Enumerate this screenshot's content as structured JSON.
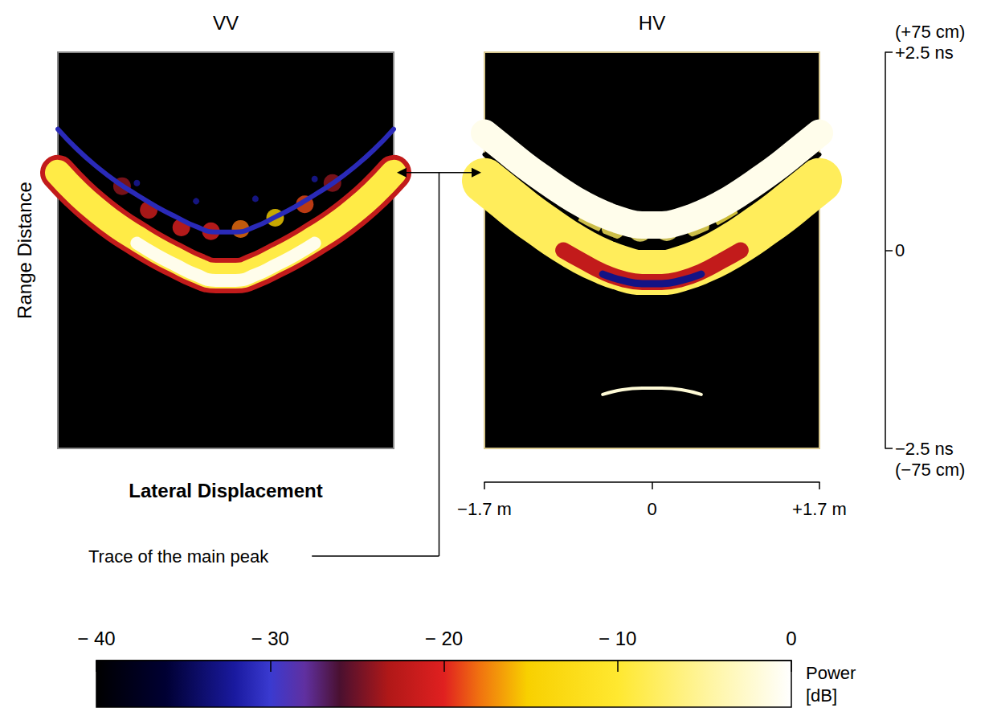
{
  "chart_data": [
    {
      "type": "line",
      "title": "VV",
      "tick_labels": false,
      "xlim": [
        -1.7,
        1.7
      ],
      "ylim": [
        -2.5,
        2.5
      ],
      "x": [
        -1.7,
        -1.5,
        -1.3,
        -1.1,
        -0.9,
        -0.7,
        -0.5,
        -0.3,
        -0.1,
        0.1,
        0.3,
        0.5,
        0.7,
        0.9,
        1.1,
        1.3,
        1.5,
        1.7
      ],
      "series": [
        {
          "type": "line",
          "power": -31,
          "values": [
            1.53,
            1.27,
            1.05,
            0.86,
            0.7,
            0.55,
            0.42,
            0.3,
            0.23,
            0.23,
            0.3,
            0.42,
            0.55,
            0.7,
            0.86,
            1.05,
            1.27,
            1.53
          ]
        },
        {
          "type": "line",
          "power": -22,
          "values": [
            0.98,
            0.72,
            0.5,
            0.31,
            0.15,
            0.0,
            -0.13,
            -0.25,
            -0.32,
            -0.32,
            -0.25,
            -0.13,
            0.0,
            0.15,
            0.31,
            0.5,
            0.72,
            0.98
          ]
        },
        {
          "type": "line",
          "power": -9,
          "values": [
            0.98,
            0.72,
            0.5,
            0.31,
            0.15,
            0.0,
            -0.13,
            -0.25,
            -0.32,
            -0.32,
            -0.25,
            -0.13,
            0.0,
            0.15,
            0.31,
            0.5,
            0.72,
            0.98
          ]
        },
        {
          "type": "line",
          "power": -1,
          "values": [
            null,
            null,
            null,
            null,
            0.09,
            -0.06,
            -0.19,
            -0.31,
            -0.38,
            -0.38,
            -0.31,
            -0.19,
            -0.06,
            0.09,
            null,
            null,
            null,
            null
          ]
        },
        {
          "type": "scatter",
          "x": [
            -0.9,
            -0.3,
            0.3,
            0.9
          ],
          "values": [
            0.85,
            0.62,
            0.65,
            0.9
          ],
          "power": [
            -32,
            -32,
            -32,
            -32
          ]
        },
        {
          "type": "scatter",
          "x": [
            -1.05,
            -0.78,
            -0.45,
            -0.15,
            0.15,
            0.5,
            0.8,
            1.08
          ],
          "values": [
            0.81,
            0.51,
            0.29,
            0.24,
            0.27,
            0.41,
            0.58,
            0.85
          ],
          "power": [
            -24,
            -21,
            -20,
            -20,
            -18,
            -15,
            -19,
            -24
          ]
        }
      ]
    },
    {
      "type": "line",
      "title": "HV",
      "xlim": [
        -1.7,
        1.7
      ],
      "ylim": [
        -2.5,
        2.5
      ],
      "xticks": [
        {
          "value": -1.7,
          "label": "−1.7 m"
        },
        0,
        {
          "value": 1.7,
          "label": "+1.7 m"
        }
      ],
      "yticks": [
        {
          "value": -2.5,
          "label": "−2.5 ns"
        },
        0,
        {
          "value": 2.5,
          "label": "+2.5 ns"
        }
      ],
      "y_annotations": [
        {
          "value": 2.5,
          "text": "(+75 cm)"
        },
        {
          "value": -2.5,
          "text": "(−75 cm)"
        }
      ],
      "x": [
        -1.7,
        -1.5,
        -1.3,
        -1.1,
        -0.9,
        -0.7,
        -0.5,
        -0.3,
        -0.1,
        0.1,
        0.3,
        0.5,
        0.7,
        0.9,
        1.1,
        1.3,
        1.5,
        1.7
      ],
      "series": [
        {
          "type": "line",
          "power": -1,
          "values": [
            1.48,
            1.28,
            1.08,
            0.9,
            0.73,
            0.58,
            0.46,
            0.37,
            0.32,
            0.32,
            0.37,
            0.46,
            0.58,
            0.73,
            0.9,
            1.08,
            1.28,
            1.48
          ]
        },
        {
          "type": "line",
          "power": -40,
          "values": [
            1.21,
            1.01,
            0.81,
            0.63,
            0.46,
            0.31,
            0.19,
            0.1,
            0.05,
            0.05,
            0.1,
            0.19,
            0.31,
            0.46,
            0.63,
            0.81,
            1.01,
            1.21
          ]
        },
        {
          "type": "line",
          "power": -8,
          "values": [
            0.88,
            0.68,
            0.48,
            0.3,
            0.13,
            -0.02,
            -0.14,
            -0.23,
            -0.28,
            -0.28,
            -0.23,
            -0.14,
            -0.02,
            0.13,
            0.3,
            0.48,
            0.68,
            0.88
          ]
        },
        {
          "type": "line",
          "power": -22,
          "values": [
            null,
            null,
            null,
            null,
            0.0,
            -0.14,
            -0.27,
            -0.36,
            -0.4,
            -0.4,
            -0.36,
            -0.27,
            -0.14,
            0.0,
            null,
            null,
            null,
            null
          ]
        },
        {
          "type": "line",
          "power": -33,
          "values": [
            null,
            null,
            null,
            null,
            null,
            null,
            -0.3,
            -0.38,
            -0.42,
            -0.42,
            -0.38,
            -0.3,
            null,
            null,
            null,
            null,
            null,
            null
          ]
        },
        {
          "type": "line",
          "power": -2,
          "values": [
            null,
            null,
            null,
            null,
            null,
            null,
            -1.82,
            -1.76,
            -1.74,
            -1.74,
            -1.76,
            -1.82,
            null,
            null,
            null,
            null,
            null,
            null
          ]
        },
        {
          "type": "scatter",
          "x": [
            -0.63,
            -0.39,
            -0.12,
            0.15,
            0.46,
            0.76
          ],
          "values": [
            0.34,
            0.29,
            0.26,
            0.27,
            0.31,
            0.41
          ],
          "power": [
            -8,
            -8,
            -7,
            -7,
            -8,
            -9
          ]
        },
        {
          "type": "scatter",
          "x": [
            -0.39,
            -0.12,
            0.15,
            0.46
          ],
          "values": [
            0.29,
            0.26,
            0.27,
            0.31
          ],
          "power": [
            -18,
            -20,
            -22,
            -17
          ]
        }
      ]
    }
  ],
  "figure": {
    "ylabel": "Range Distance",
    "xlabel": "Lateral Displacement",
    "annotation": "Trace of the main peak",
    "colorbar": {
      "label": "Power [dB]",
      "range": [
        -40,
        0
      ],
      "ticks": [
        {
          "value": -40,
          "label": "− 40"
        },
        {
          "value": -30,
          "label": "− 30"
        },
        {
          "value": -20,
          "label": "− 20"
        },
        {
          "value": -10,
          "label": "− 10"
        },
        0
      ]
    }
  }
}
